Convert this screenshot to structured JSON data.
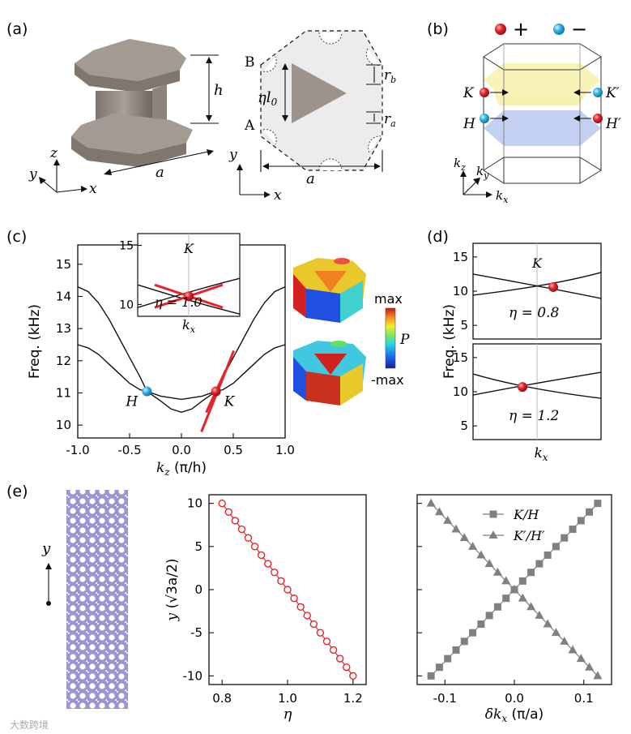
{
  "panels": {
    "a": {
      "label": "(a)",
      "h": "h",
      "a": "a",
      "x": "x",
      "y": "y",
      "z": "z",
      "B": "B",
      "A": "A",
      "eta": "η",
      "l": "l",
      "l_sub": "0",
      "r": "r",
      "rb_sub": "b",
      "ra_sub": "a"
    },
    "b": {
      "label": "(b)",
      "plus": "+",
      "minus": "−",
      "K": "K",
      "Kp": "K′",
      "H": "H",
      "Hp": "H′",
      "kz": "k",
      "kz_sub": "z",
      "ky": "k",
      "ky_sub": "y",
      "kx": "k",
      "kx_sub": "x"
    },
    "c": {
      "label": "(c)",
      "H": "H",
      "K": "K",
      "max": "max",
      "min": "-max",
      "P": "P",
      "inset_K": "K",
      "inset_eta": "η = 1.0",
      "inset_x": "k",
      "inset_x_sub": "x"
    },
    "d": {
      "label": "(d)",
      "K": "K",
      "eta_top": "η = 0.8",
      "eta_bot": "η = 1.2",
      "x": "k",
      "x_sub": "x"
    },
    "e": {
      "label": "(e)",
      "y": "y"
    }
  },
  "watermark": "大数跨境",
  "colors": {
    "red": "#e3242b",
    "blue": "#2fb3e8",
    "grey": "#808080",
    "yellow": "#f5f0a0",
    "lightblue": "#b8c8f0"
  },
  "chart_data": [
    {
      "type": "line",
      "panel": "c",
      "xlabel_text": "k",
      "xlabel_sub": "z",
      "xlabel_unit": "(π/h)",
      "ylabel": "Freq. (kHz)",
      "xlim": [
        -1.0,
        1.0
      ],
      "ylim": [
        9.6,
        15.6
      ],
      "xticks": [
        "-1.0",
        "-0.5",
        "0.0",
        "0.5",
        "1.0"
      ],
      "yticks": [
        "10",
        "11",
        "12",
        "13",
        "14",
        "15"
      ],
      "x": [
        -1.0,
        -0.9,
        -0.8,
        -0.7,
        -0.6,
        -0.5,
        -0.4,
        -0.333,
        -0.2,
        -0.1,
        0.0,
        0.1,
        0.2,
        0.333,
        0.4,
        0.5,
        0.6,
        0.7,
        0.8,
        0.9,
        1.0
      ],
      "series": [
        {
          "values": [
            14.3,
            14.15,
            13.8,
            13.3,
            12.7,
            12.1,
            11.5,
            11.05,
            10.9,
            10.85,
            10.8,
            10.85,
            10.9,
            11.05,
            11.5,
            12.1,
            12.7,
            13.3,
            13.8,
            14.15,
            14.3
          ]
        },
        {
          "values": [
            12.5,
            12.4,
            12.2,
            11.9,
            11.6,
            11.3,
            11.1,
            11.05,
            10.75,
            10.5,
            10.4,
            10.5,
            10.75,
            11.05,
            11.1,
            11.3,
            11.6,
            11.9,
            12.2,
            12.4,
            12.5
          ]
        }
      ],
      "points": [
        {
          "name": "H",
          "x": -0.333,
          "y": 11.05,
          "color": "#2fb3e8"
        },
        {
          "name": "K",
          "x": 0.333,
          "y": 11.05,
          "color": "#e3242b"
        }
      ]
    },
    {
      "type": "line",
      "panel": "c-inset",
      "ylim": [
        9,
        16
      ],
      "yticks": [
        "10",
        "15"
      ],
      "point": {
        "name": "K",
        "y": 10.7
      }
    },
    {
      "type": "line",
      "panel": "d-top",
      "ylabel": "Freq. (kHz)",
      "ylim": [
        3,
        17
      ],
      "yticks": [
        "5",
        "10",
        "15"
      ],
      "point": {
        "name": "K",
        "y": 10.6
      }
    },
    {
      "type": "line",
      "panel": "d-bottom",
      "ylim": [
        3,
        17
      ],
      "yticks": [
        "5",
        "10",
        "15"
      ],
      "point": {
        "y": 10.7
      }
    },
    {
      "type": "scatter",
      "panel": "e-middle",
      "xlabel": "η",
      "ylabel_text": "y",
      "ylabel_unit": "(√3a/2)",
      "xlim": [
        0.76,
        1.24
      ],
      "ylim": [
        -11,
        11
      ],
      "xticks": [
        "0.8",
        "1.0",
        "1.2"
      ],
      "yticks": [
        "-10",
        "-5",
        "0",
        "5",
        "10"
      ],
      "x": [
        0.8,
        0.82,
        0.84,
        0.86,
        0.88,
        0.9,
        0.92,
        0.94,
        0.96,
        0.98,
        1.0,
        1.02,
        1.04,
        1.06,
        1.08,
        1.1,
        1.12,
        1.14,
        1.16,
        1.18,
        1.2
      ],
      "y": [
        10,
        9,
        8,
        7,
        6,
        5,
        4,
        3,
        2,
        1,
        0,
        -1,
        -2,
        -3,
        -4,
        -5,
        -6,
        -7,
        -8,
        -9,
        -10
      ]
    },
    {
      "type": "scatter",
      "panel": "e-right",
      "xlabel_text": "δk",
      "xlabel_sub": "x",
      "xlabel_unit": "(π/a)",
      "xlim": [
        -0.14,
        0.14
      ],
      "ylim": [
        -11,
        11
      ],
      "xticks": [
        "-0.1",
        "0.0",
        "0.1"
      ],
      "yticks": [
        "-10",
        "-5",
        "0",
        "5",
        "10"
      ],
      "series": [
        {
          "name": "K/H",
          "marker": "square",
          "x": [
            -0.12,
            -0.108,
            -0.096,
            -0.084,
            -0.072,
            -0.06,
            -0.048,
            -0.036,
            -0.024,
            -0.012,
            0.0,
            0.012,
            0.024,
            0.036,
            0.048,
            0.06,
            0.072,
            0.084,
            0.096,
            0.108,
            0.12
          ],
          "y": [
            -10,
            -9,
            -8,
            -7,
            -6,
            -5,
            -4,
            -3,
            -2,
            -1,
            0,
            1,
            2,
            3,
            4,
            5,
            6,
            7,
            8,
            9,
            10
          ]
        },
        {
          "name": "K′/H′",
          "marker": "triangle",
          "x": [
            -0.12,
            -0.108,
            -0.096,
            -0.084,
            -0.072,
            -0.06,
            -0.048,
            -0.036,
            -0.024,
            -0.012,
            0.0,
            0.012,
            0.024,
            0.036,
            0.048,
            0.06,
            0.072,
            0.084,
            0.096,
            0.108,
            0.12
          ],
          "y": [
            10,
            9,
            8,
            7,
            6,
            5,
            4,
            3,
            2,
            1,
            0,
            -1,
            -2,
            -3,
            -4,
            -5,
            -6,
            -7,
            -8,
            -9,
            -10
          ]
        }
      ]
    }
  ]
}
